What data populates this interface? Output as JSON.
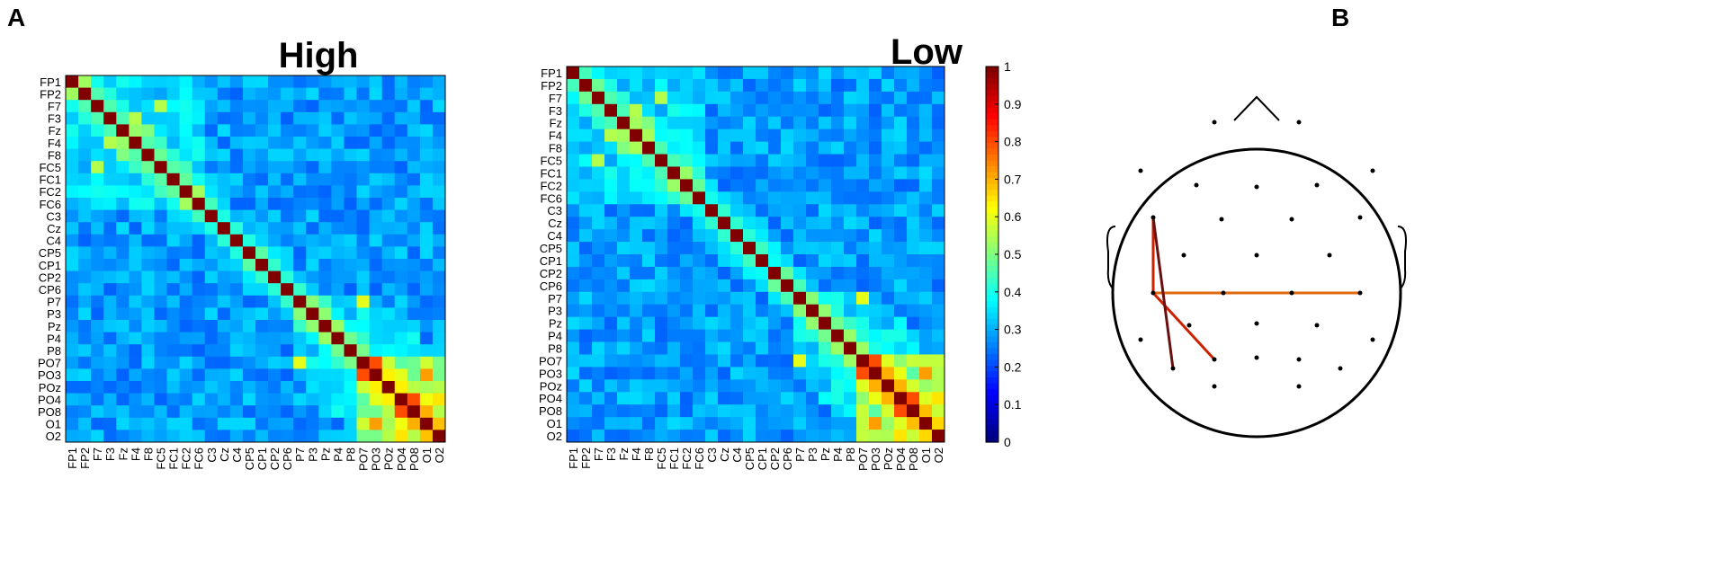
{
  "panel_labels": {
    "a": "A",
    "b": "B"
  },
  "chart_data": [
    {
      "type": "heatmap",
      "title": "High",
      "channels": [
        "FP1",
        "FP2",
        "F7",
        "F3",
        "Fz",
        "F4",
        "F8",
        "FC5",
        "FC1",
        "FC2",
        "FC6",
        "C3",
        "Cz",
        "C4",
        "CP5",
        "CP1",
        "CP2",
        "CP6",
        "P7",
        "P3",
        "Pz",
        "P4",
        "P8",
        "PO7",
        "PO3",
        "POz",
        "PO4",
        "PO8",
        "O1",
        "O2"
      ],
      "values_description": "30x30 symmetric correlation matrix; diagonal = 1",
      "values": [],
      "zlim": [
        0,
        1
      ]
    },
    {
      "type": "heatmap",
      "title": "Low",
      "channels": [
        "FP1",
        "FP2",
        "F7",
        "F3",
        "Fz",
        "F4",
        "F8",
        "FC5",
        "FC1",
        "FC2",
        "FC6",
        "C3",
        "Cz",
        "C4",
        "CP5",
        "CP1",
        "CP2",
        "CP6",
        "P7",
        "P3",
        "Pz",
        "P4",
        "P8",
        "PO7",
        "PO3",
        "POz",
        "PO4",
        "PO8",
        "O1",
        "O2"
      ],
      "values": [],
      "zlim": [
        0,
        1
      ]
    }
  ],
  "colorbar": {
    "ticks": [
      0,
      0.1,
      0.2,
      0.3,
      0.4,
      0.5,
      0.6,
      0.7,
      0.8,
      0.9,
      1
    ],
    "tick_labels": [
      "0",
      "0.1",
      "0.2",
      "0.3",
      "0.4",
      "0.5",
      "0.6",
      "0.7",
      "0.8",
      "0.9",
      "1"
    ],
    "colormap": "jet"
  },
  "head_map": {
    "electrode_count": 30,
    "connections": [
      {
        "from": "P7",
        "to": "FC5",
        "color": "#cc2200"
      },
      {
        "from": "P7",
        "to": "PO3",
        "color": "#cc2200"
      },
      {
        "from": "P7",
        "to": "P8",
        "color": "#e06a10"
      },
      {
        "from": "FC5",
        "to": "PO7",
        "color": "#6b1010"
      }
    ]
  }
}
